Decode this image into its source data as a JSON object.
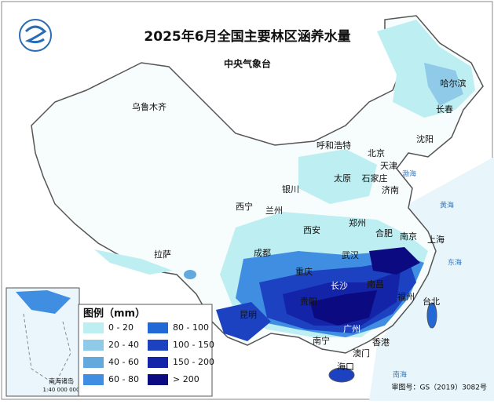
{
  "header": {
    "title": "2025年6月全国主要林区涵养水量",
    "subtitle": "中央气象台"
  },
  "cities": [
    "乌鲁木齐",
    "哈尔滨",
    "长春",
    "沈阳",
    "呼和浩特",
    "北京",
    "天津",
    "太原",
    "石家庄",
    "济南",
    "银川",
    "西宁",
    "兰州",
    "郑州",
    "西安",
    "合肥",
    "南京",
    "上海",
    "拉萨",
    "成都",
    "武汉",
    "重庆",
    "南昌",
    "福州",
    "台北",
    "贵阳",
    "昆明",
    "南宁",
    "香港",
    "澳门",
    "海口",
    "长沙",
    "广州"
  ],
  "seas": [
    "东海",
    "南海",
    "黄海",
    "渤海"
  ],
  "legend": {
    "title": "图例（mm）",
    "items": [
      {
        "label": "0 - 20",
        "color": "#bdeef2"
      },
      {
        "label": "20 - 40",
        "color": "#8fcbe9"
      },
      {
        "label": "40 - 60",
        "color": "#64a9de"
      },
      {
        "label": "60 - 80",
        "color": "#3f8ee2"
      },
      {
        "label": "80 - 100",
        "color": "#2268d6"
      },
      {
        "label": "100 - 150",
        "color": "#1c42c2"
      },
      {
        "label": "150 - 200",
        "color": "#1424a8"
      },
      {
        "label": "> 200",
        "color": "#0b0a80"
      }
    ]
  },
  "inset": {
    "label": "南海诸岛",
    "scale": "1:40 000 000"
  },
  "footer": {
    "review_number": "审图号：GS（2019）3082号"
  }
}
